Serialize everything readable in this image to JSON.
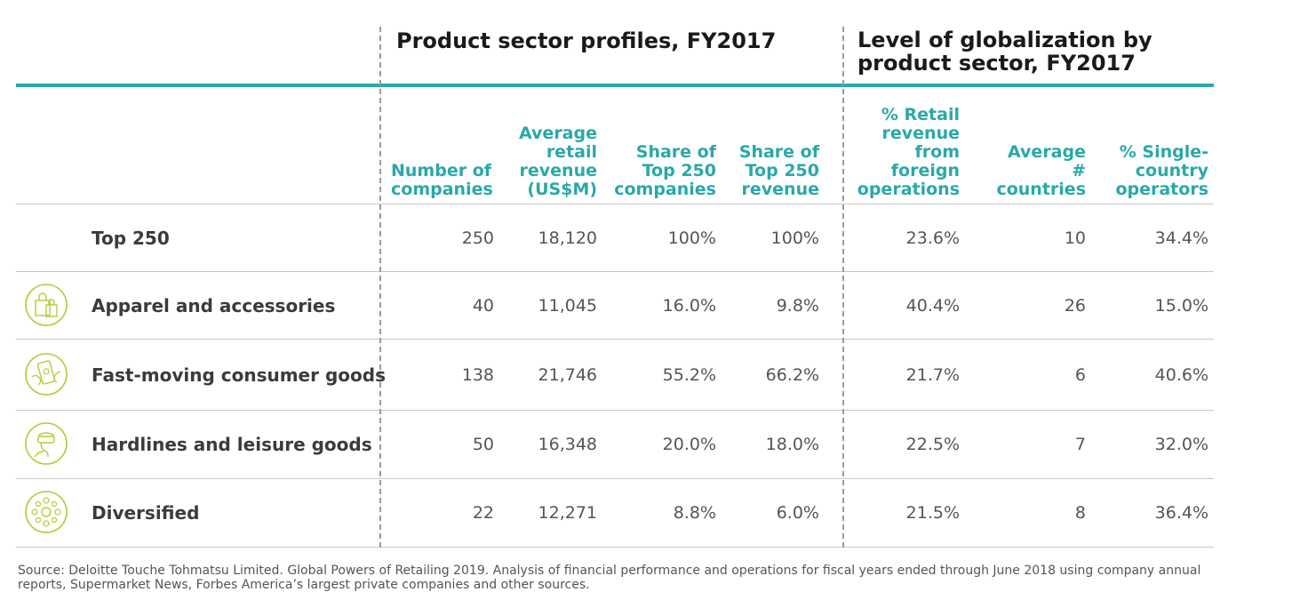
{
  "headers": {
    "group1": "Product sector profiles, FY2017",
    "group2": "Level of globalization by\nproduct sector, FY2017",
    "columns": [
      "Number of\ncompanies",
      "Average\nretail\nrevenue\n(US$M)",
      "Share of\nTop 250\ncompanies",
      "Share of\nTop 250\nrevenue",
      "% Retail\nrevenue\nfrom\nforeign\noperations",
      "Average\n# countries",
      "% Single-\ncountry\noperators"
    ]
  },
  "rows": [
    {
      "label": "Top 250",
      "icon": "none",
      "values": [
        "250",
        "18,120",
        "100%",
        "100%",
        "23.6%",
        "10",
        "34.4%"
      ]
    },
    {
      "label": "Apparel and accessories",
      "icon": "shopping-bag-icon",
      "values": [
        "40",
        "11,045",
        "16.0%",
        "9.8%",
        "40.4%",
        "26",
        "15.0%"
      ]
    },
    {
      "label": "Fast-moving consumer goods",
      "icon": "phone-hands-icon",
      "values": [
        "138",
        "21,746",
        "55.2%",
        "66.2%",
        "21.7%",
        "6",
        "40.6%"
      ]
    },
    {
      "label": "Hardlines and leisure goods",
      "icon": "vr-headset-icon",
      "values": [
        "50",
        "16,348",
        "20.0%",
        "18.0%",
        "22.5%",
        "7",
        "32.0%"
      ]
    },
    {
      "label": "Diversified",
      "icon": "network-icon",
      "values": [
        "22",
        "12,271",
        "8.8%",
        "6.0%",
        "21.5%",
        "8",
        "36.4%"
      ]
    }
  ],
  "source": "Source: Deloitte Touche Tohmatsu Limited. Global Powers of Retailing 2019. Analysis of financial performance and operations for fiscal years ended through June 2018 using company annual reports, Supermarket News, Forbes America’s largest private companies and other sources.",
  "colors": {
    "accent": "#2aa8a8",
    "icon": "#b9c93a",
    "text": "#3b3b3b"
  }
}
